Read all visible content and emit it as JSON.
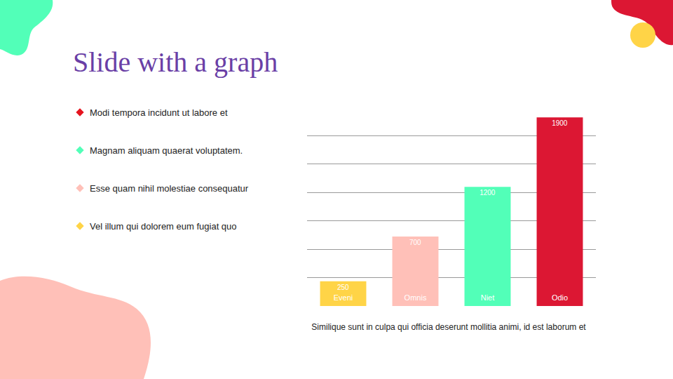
{
  "slide": {
    "title": "Slide with a graph",
    "bullets": [
      {
        "text": "Modi tempora incidunt ut labore et",
        "color": "#e5141e"
      },
      {
        "text": "Magnam aliquam quaerat voluptatem.",
        "color": "#52ffb8"
      },
      {
        "text": "Esse quam nihil molestiae consequatur",
        "color": "#ffc0b8"
      },
      {
        "text": "Vel illum qui dolorem eum fugiat quo",
        "color": "#ffd447"
      }
    ],
    "caption": "Similique sunt in culpa qui officia deserunt mollitia animi, id est laborum et"
  },
  "chart_data": {
    "type": "bar",
    "categories": [
      "Eveni",
      "Omnis",
      "Niet",
      "Odio"
    ],
    "values": [
      250,
      700,
      1200,
      1900
    ],
    "colors": [
      "#ffd447",
      "#ffc0b8",
      "#52ffb8",
      "#dc1733"
    ],
    "ylim": [
      0,
      2000
    ],
    "yticks": [
      0,
      285.7,
      571.4,
      857.1,
      1142.9,
      1428.6,
      1714.3,
      2000
    ],
    "grid": true,
    "data_labels": true,
    "tick_labels": "x"
  }
}
